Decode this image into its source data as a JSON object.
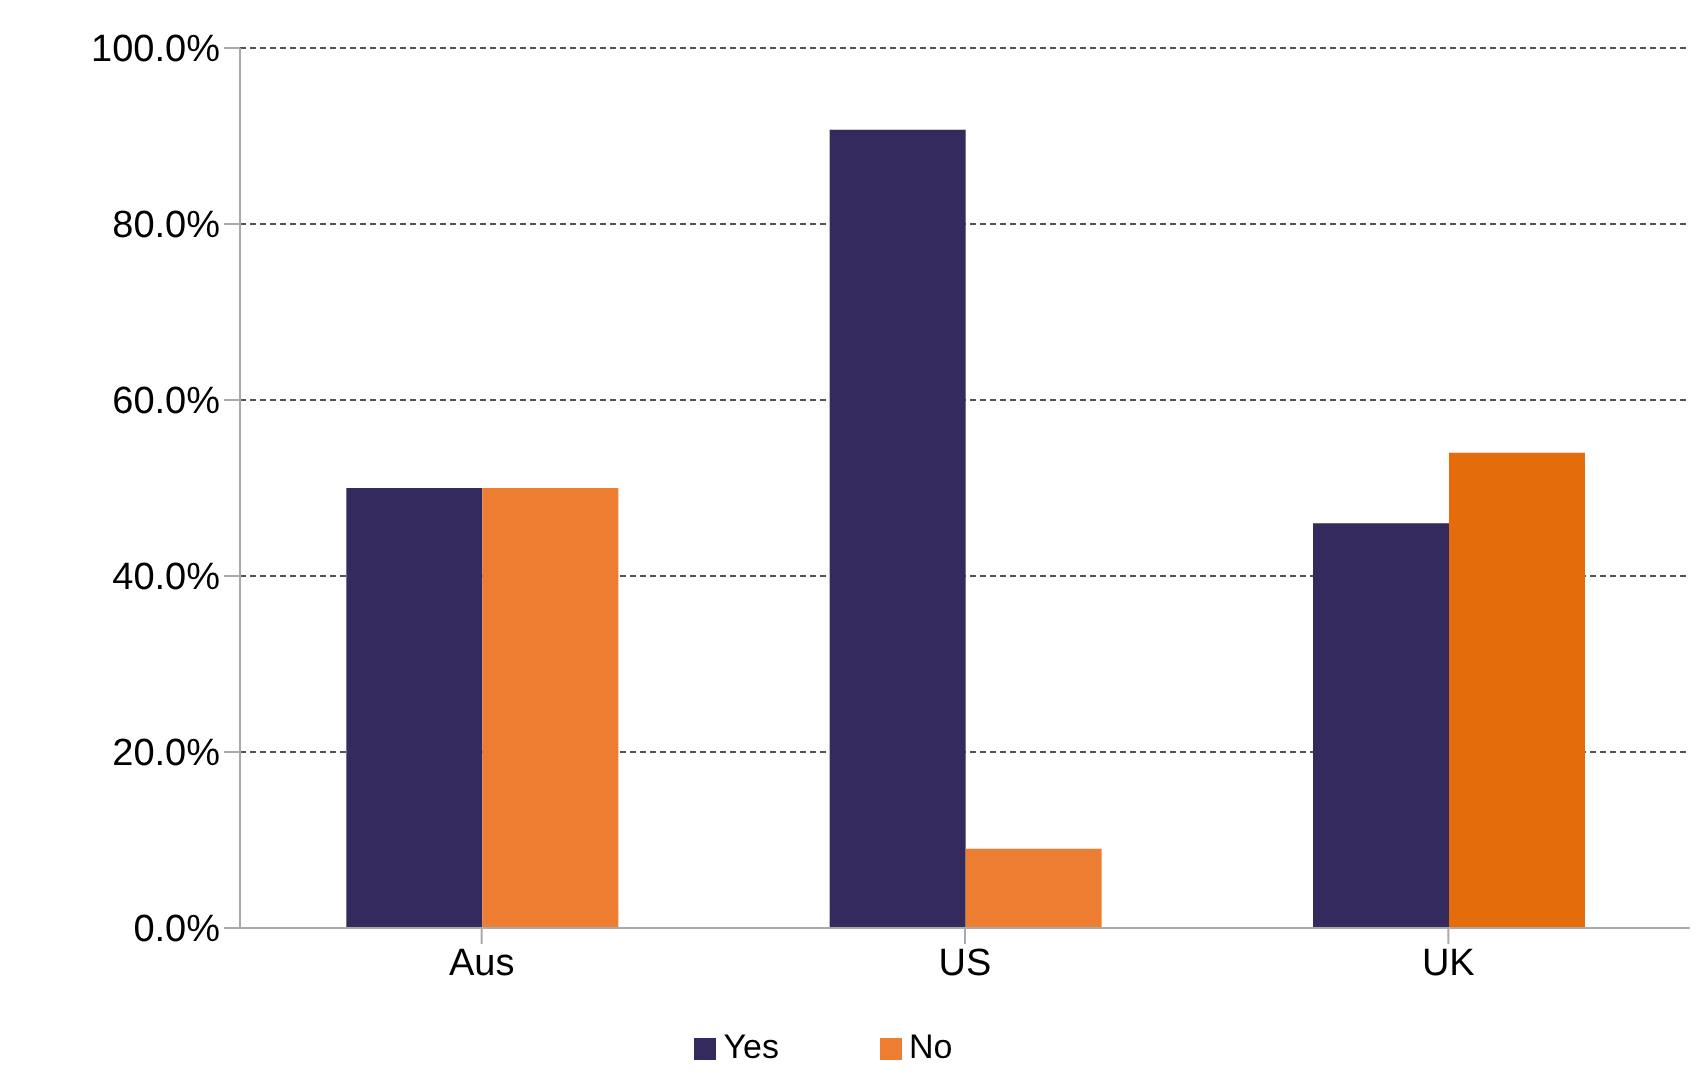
{
  "chart_data": {
    "type": "bar",
    "categories": [
      "Aus",
      "US",
      "UK"
    ],
    "series": [
      {
        "name": "Yes",
        "color": "#352a5e",
        "values": [
          50,
          90.7,
          46
        ]
      },
      {
        "name": "No",
        "color": "#ed7d31",
        "colors": [
          "#ed7d31",
          "#ed7d31",
          "#e46c0a"
        ],
        "values": [
          50,
          9,
          54
        ]
      }
    ],
    "ylim": [
      0,
      100
    ],
    "yticks": [
      {
        "value": 0,
        "label": "0.0%"
      },
      {
        "value": 20,
        "label": "20.0%"
      },
      {
        "value": 40,
        "label": "40.0%"
      },
      {
        "value": 60,
        "label": "60.0%"
      },
      {
        "value": 80,
        "label": "80.0%"
      },
      {
        "value": 100,
        "label": "100.0%"
      }
    ],
    "grid": "y",
    "legend": "bottom"
  }
}
